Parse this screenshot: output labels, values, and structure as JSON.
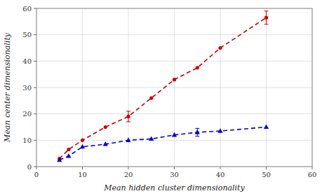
{
  "chart_data": {
    "type": "line",
    "xlabel": "Mean hidden cluster dimensionality",
    "ylabel": "Mean center dimensionality",
    "x": [
      5,
      7,
      10,
      15,
      20,
      25,
      30,
      35,
      40,
      50
    ],
    "series": [
      {
        "color": "#cc0000",
        "marker": "circle",
        "line_style": "dashed",
        "values": [
          3.0,
          6.5,
          10.0,
          15.0,
          19.0,
          26.0,
          33.0,
          37.5,
          45.0,
          56.5
        ],
        "errors": [
          null,
          null,
          null,
          null,
          2.0,
          null,
          null,
          null,
          null,
          2.5
        ]
      },
      {
        "color": "#0000cc",
        "marker": "triangle",
        "line_style": "dashed",
        "values": [
          2.5,
          4.0,
          7.5,
          8.5,
          10.0,
          10.5,
          12.0,
          13.0,
          13.5,
          15.0
        ],
        "errors": [
          null,
          null,
          null,
          null,
          null,
          null,
          null,
          1.5,
          null,
          null
        ]
      }
    ],
    "xlim": [
      0,
      60
    ],
    "ylim": [
      0,
      60
    ],
    "xticks": [
      0,
      10,
      20,
      30,
      40,
      50,
      60
    ],
    "yticks": [
      0,
      10,
      20,
      30,
      40,
      50,
      60
    ],
    "grid": true
  }
}
